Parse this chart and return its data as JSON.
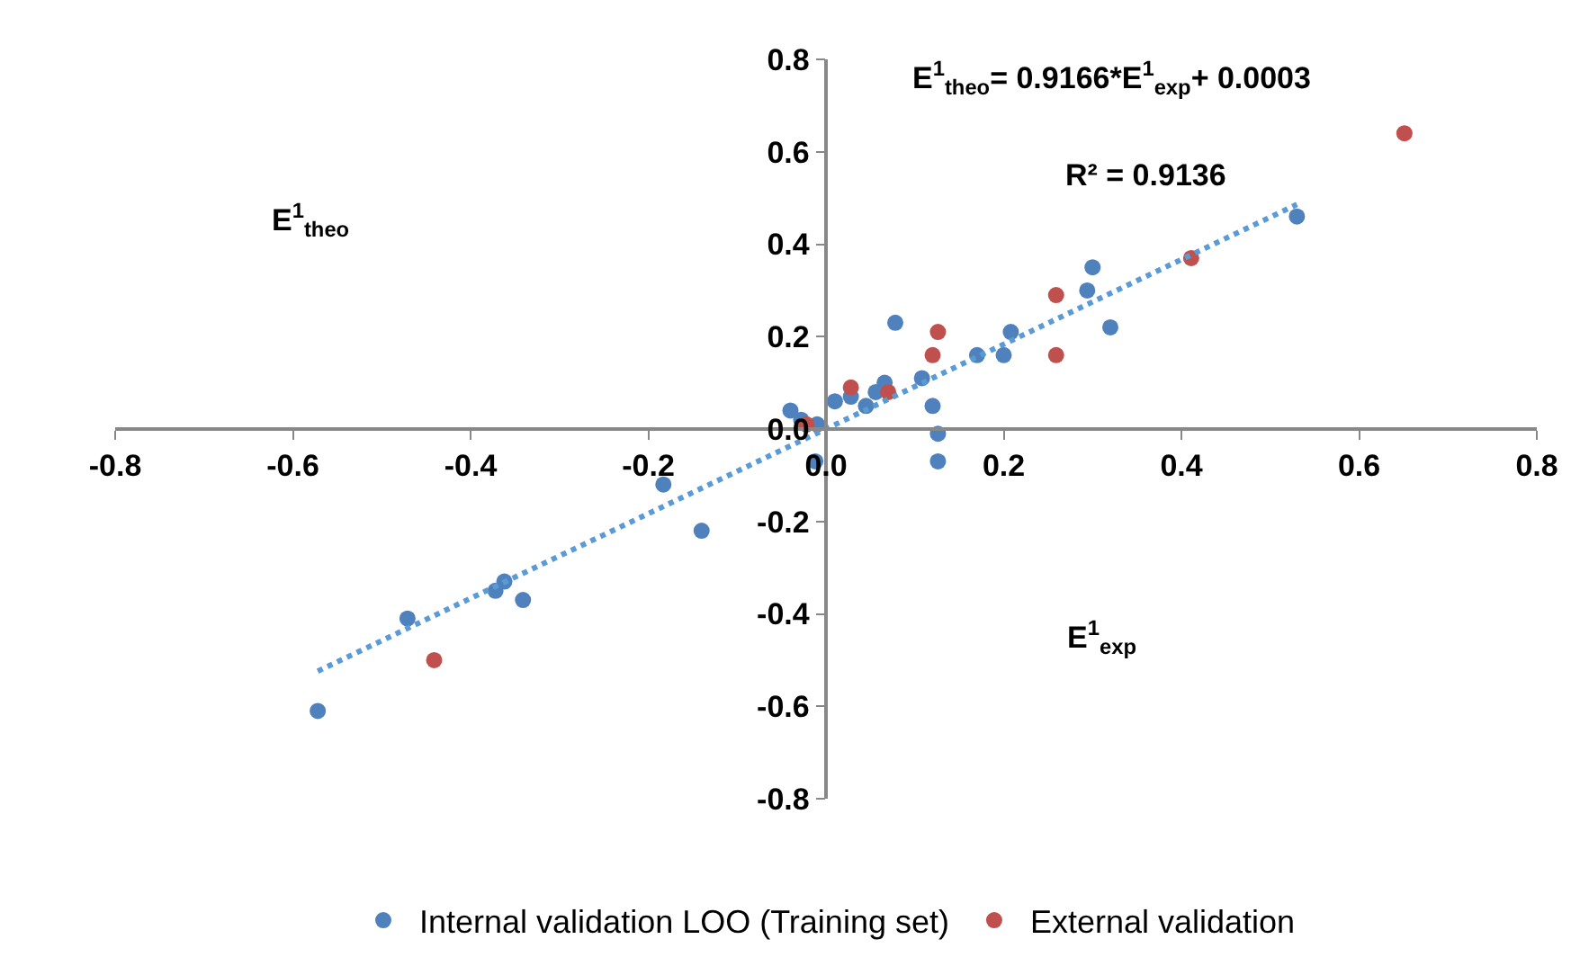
{
  "chart_data": {
    "type": "scatter",
    "xlabel": "E$^{1}$$_{exp}$",
    "ylabel": "E$^{1}$$_{theo}$",
    "annotations": [
      "E$^{1}$$_{theo}$= 0.9166*E$^{1}$$_{exp}$+ 0.0003",
      "R² = 0.9136"
    ],
    "xlim": [
      -0.8,
      0.8
    ],
    "ylim": [
      -0.8,
      0.8
    ],
    "xticks": [
      -0.8,
      -0.6,
      -0.4,
      -0.2,
      {
        "value": 0,
        "label": "0.0"
      },
      0.2,
      0.4,
      0.6,
      0.8
    ],
    "yticks": [
      -0.8,
      -0.6,
      -0.4,
      -0.2,
      {
        "value": 0,
        "label": "0.0"
      },
      0.2,
      0.4,
      0.6,
      0.8
    ],
    "legend": "bottom",
    "marker": "circle",
    "series": [
      {
        "name": "Internal validation LOO (Training set)",
        "color": "#4f81bd",
        "x": [
          0.53,
          0.3,
          0.294,
          0.32,
          0.078,
          0.208,
          0.2,
          0.17,
          0.108,
          0.12,
          0.126,
          0.126,
          0.066,
          0.056,
          0.045,
          0.028,
          0.01,
          -0.04,
          -0.028,
          -0.01,
          -0.012,
          -0.14,
          -0.183,
          -0.362,
          -0.372,
          -0.341,
          -0.471,
          -0.572
        ],
        "values": [
          0.46,
          0.35,
          0.3,
          0.22,
          0.23,
          0.21,
          0.16,
          0.16,
          0.11,
          0.05,
          -0.01,
          -0.07,
          0.1,
          0.08,
          0.05,
          0.07,
          0.06,
          0.04,
          0.02,
          0.01,
          -0.07,
          -0.22,
          -0.12,
          -0.33,
          -0.35,
          -0.37,
          -0.41,
          -0.61
        ]
      },
      {
        "name": "External validation",
        "color": "#c0504d",
        "x": [
          0.651,
          0.411,
          0.259,
          0.259,
          0.126,
          0.12,
          0.028,
          0.07,
          -0.022,
          -0.441
        ],
        "values": [
          0.64,
          0.37,
          0.29,
          0.16,
          0.21,
          0.16,
          0.09,
          0.08,
          0.01,
          -0.5
        ]
      },
      {
        "type": "line",
        "color": "#5b9bd5",
        "line_style": "dotted",
        "marker": "none",
        "x": [
          -0.572,
          0.53
        ],
        "values": [
          -0.524,
          0.486
        ]
      }
    ]
  }
}
